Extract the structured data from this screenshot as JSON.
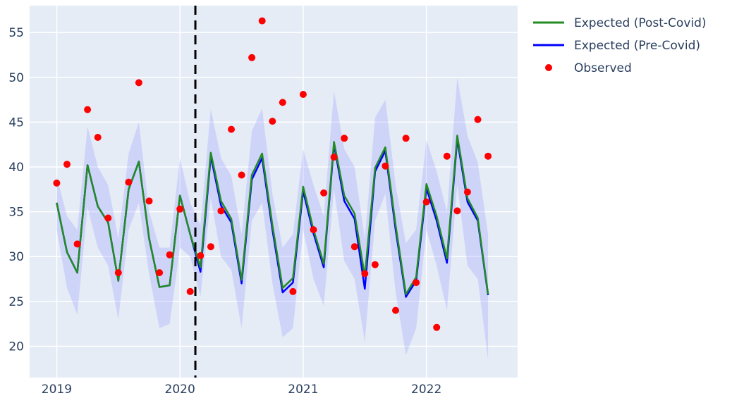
{
  "chart_data": {
    "type": "line",
    "title": "",
    "xlabel": "",
    "ylabel": "",
    "ylim": [
      16.5,
      58
    ],
    "xlim": [
      2018.78,
      2022.74
    ],
    "x_ticks": [
      {
        "value": 2019,
        "label": "2019"
      },
      {
        "value": 2020,
        "label": "2020"
      },
      {
        "value": 2021,
        "label": "2021"
      },
      {
        "value": 2022,
        "label": "2022"
      }
    ],
    "y_ticks": [
      {
        "value": 20,
        "label": "20"
      },
      {
        "value": 25,
        "label": "25"
      },
      {
        "value": 30,
        "label": "30"
      },
      {
        "value": 35,
        "label": "35"
      },
      {
        "value": 40,
        "label": "40"
      },
      {
        "value": 45,
        "label": "45"
      },
      {
        "value": 50,
        "label": "50"
      },
      {
        "value": 55,
        "label": "55"
      }
    ],
    "grid": true,
    "legend_position": "top-right, outside plot",
    "covid_marker": {
      "x": 2020.125,
      "style": "dashed",
      "color": "#000000"
    },
    "x": [
      2019.0,
      2019.0833,
      2019.1667,
      2019.25,
      2019.3333,
      2019.4167,
      2019.5,
      2019.5833,
      2019.6667,
      2019.75,
      2019.8333,
      2019.9167,
      2020.0,
      2020.0833,
      2020.1667,
      2020.25,
      2020.3333,
      2020.4167,
      2020.5,
      2020.5833,
      2020.6667,
      2020.75,
      2020.8333,
      2020.9167,
      2021.0,
      2021.0833,
      2021.1667,
      2021.25,
      2021.3333,
      2021.4167,
      2021.5,
      2021.5833,
      2021.6667,
      2021.75,
      2021.8333,
      2021.9167,
      2022.0,
      2022.0833,
      2022.1667,
      2022.25,
      2022.3333,
      2022.4167,
      2022.5
    ],
    "band": {
      "color": "#8a8cff",
      "lower": [
        33,
        26.5,
        23.5,
        35.5,
        31,
        29,
        23,
        33,
        36,
        28,
        22,
        22.5,
        31,
        30,
        25.5,
        36.5,
        30,
        28.5,
        22,
        34,
        36,
        27,
        21,
        22,
        33,
        27.5,
        24.5,
        37.5,
        29.5,
        27.5,
        20.5,
        34,
        37,
        26,
        19,
        22,
        33,
        29,
        24,
        38,
        29,
        27.5,
        18.5
      ],
      "upper": [
        39,
        34.5,
        33,
        44.5,
        40,
        38,
        32,
        41.5,
        45,
        35,
        31,
        31,
        41,
        36,
        33.5,
        46.5,
        41,
        39,
        32.5,
        44,
        46.5,
        37,
        31,
        32.5,
        42,
        38,
        34.5,
        48.5,
        42,
        40,
        32,
        45.5,
        47.5,
        38,
        31.5,
        33,
        43,
        39.5,
        35,
        50,
        43.5,
        40.5,
        32.5
      ]
    },
    "series": [
      {
        "name": "Expected (Post-Covid)",
        "color": "#228b22",
        "kind": "line",
        "values": [
          36,
          30.5,
          28.2,
          40.2,
          35.6,
          33.8,
          27.3,
          37.5,
          40.6,
          32,
          26.6,
          26.8,
          36.8,
          32.5,
          28.8,
          41.6,
          36.2,
          34.2,
          27.4,
          39.1,
          41.5,
          33.5,
          26.5,
          27.6,
          37.8,
          33,
          29.2,
          42.8,
          36.8,
          34.8,
          27.8,
          39.9,
          42.2,
          33.5,
          25.8,
          27.7,
          38.1,
          34.5,
          29.8,
          43.5,
          36.5,
          34.3,
          25.8
        ]
      },
      {
        "name": "Expected (Pre-Covid)",
        "color": "#0000ff",
        "kind": "line",
        "values": [
          36,
          30.5,
          28.2,
          40.2,
          35.6,
          33.8,
          27.3,
          37.5,
          40.6,
          32,
          26.6,
          26.8,
          36.8,
          32.5,
          28.3,
          41.2,
          35.7,
          33.8,
          27,
          38.6,
          41,
          33,
          26,
          27.1,
          37.3,
          32.6,
          28.8,
          42.5,
          36.2,
          34.2,
          26.4,
          39.5,
          41.8,
          33,
          25.5,
          27.3,
          37.6,
          34,
          29.3,
          43.1,
          36.1,
          34,
          25.7
        ]
      },
      {
        "name": "Observed",
        "color": "#ff0000",
        "kind": "scatter",
        "values": [
          38.2,
          40.3,
          31.4,
          46.4,
          43.3,
          34.3,
          28.2,
          38.3,
          49.4,
          36.2,
          28.2,
          30.2,
          35.3,
          26.1,
          30.1,
          31.1,
          35.1,
          44.2,
          39.1,
          52.2,
          56.3,
          45.1,
          47.2,
          26.1,
          48.1,
          33,
          37.1,
          41.1,
          43.2,
          31.1,
          28.1,
          29.1,
          40.1,
          24,
          43.2,
          27.1,
          36.1,
          22.1,
          41.2,
          35.1,
          37.2,
          45.3,
          41.2
        ]
      }
    ]
  }
}
